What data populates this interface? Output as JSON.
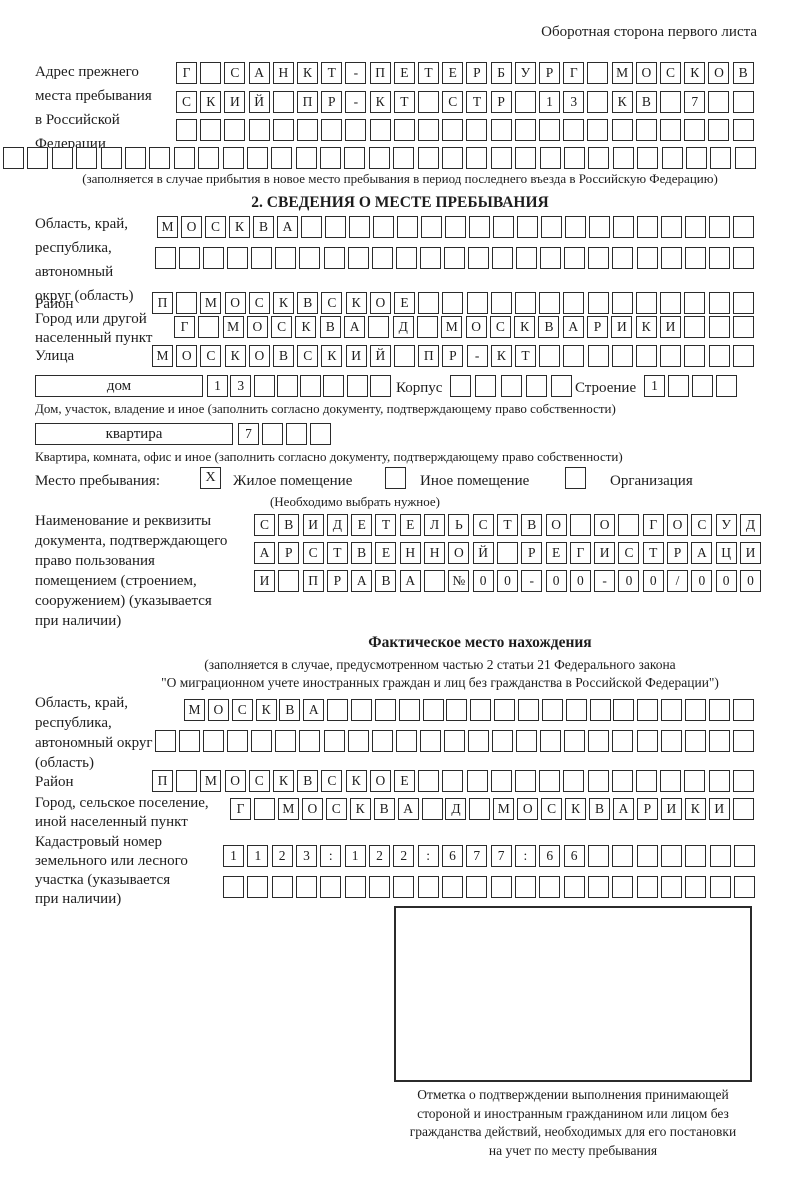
{
  "colors": {
    "ink": "#1d1d1d",
    "paper": "#ffffff"
  },
  "corner_title": "Оборотная сторона первого листа",
  "prev_address": {
    "label": "Адрес прежнего\nместа пребывания\nв Российской\nФедерации",
    "rows": [
      {
        "t": "Г САНКТ-ПЕТЕРБУРГ МОСКОВ",
        "n": 24
      },
      {
        "t": "СКИЙ ПР-КТ СТР 13 КВ 7",
        "n": 24
      },
      {
        "t": "",
        "n": 24
      },
      {
        "t": "",
        "n": 31
      }
    ],
    "note": "(заполняется в случае прибытия в новое место пребывания в период последнего въезда в Российскую Федерацию)"
  },
  "section2": {
    "title": "2. СВЕДЕНИЯ О МЕСТЕ ПРЕБЫВАНИЯ",
    "region": {
      "label": "Область, край,\nреспублика,\nавтономный\nокруг (область)",
      "rows": [
        {
          "t": "МОСКВА",
          "n": 25
        },
        {
          "t": "",
          "n": 25
        }
      ]
    },
    "district": {
      "label": "Район",
      "row": {
        "t": "П МОСКВСКОЕ",
        "n": 25
      }
    },
    "city": {
      "label": "Город или другой\nнаселенный пункт",
      "row": {
        "t": "Г МОСКВА Д МОСКВАРИКИ",
        "n": 24
      }
    },
    "street": {
      "label": "Улица",
      "row": {
        "t": "МОСКОВСКИЙ ПР-КТ",
        "n": 25
      }
    },
    "house": {
      "box_label": "дом",
      "row": {
        "t": "13",
        "n": 8
      },
      "korpus_label": "Корпус",
      "korpus_row": {
        "t": "",
        "n": 5
      },
      "stroenie_label": "Строение",
      "stroenie_row": {
        "t": "1",
        "n": 4
      },
      "note": "Дом, участок, владение и иное (заполнить согласно документу, подтверждающему право собственности)"
    },
    "apartment": {
      "box_label": "квартира",
      "row": {
        "t": "7",
        "n": 4
      },
      "note": "Квартира, комната, офис и иное (заполнить согласно документу, подтверждающему право собственности)"
    },
    "stay": {
      "label": "Место пребывания:",
      "options": [
        {
          "mark": "X",
          "label": "Жилое помещение"
        },
        {
          "mark": "",
          "label": "Иное помещение"
        },
        {
          "mark": "",
          "label": "Организация"
        }
      ],
      "note": "(Необходимо выбрать нужное)"
    },
    "document": {
      "label": "Наименование и реквизиты\nдокумента, подтверждающего\nправо пользования\nпомещением (строением,\nсооружением) (указывается\nпри наличии)",
      "rows": [
        {
          "t": "СВИДЕТЕЛЬСТВО О ГОСУД",
          "n": 21
        },
        {
          "t": "АРСТВЕННОЙ РЕГИСТРАЦИ",
          "n": 21
        },
        {
          "t": "И ПРАВА №00-00-00/000",
          "n": 21
        }
      ]
    }
  },
  "actual_location": {
    "title": "Фактическое место нахождения",
    "note_line1": "(заполняется в случае, предусмотренном частью 2 статьи 21 Федерального закона",
    "note_line2": "\"О миграционном учете иностранных граждан и лиц без гражданства в Российской Федерации\")",
    "region": {
      "label": "Область, край,\nреспублика,\nавтономный округ\n(область)",
      "rows": [
        {
          "t": "МОСКВА",
          "n": 24
        },
        {
          "t": "",
          "n": 25
        }
      ]
    },
    "district": {
      "label": "Район",
      "row": {
        "t": "П МОСКВСКОЕ",
        "n": 25
      }
    },
    "city": {
      "label": "Город, сельское поселение,\nиной населенный пункт",
      "row": {
        "t": "Г МОСКВА Д МОСКВАРИКИ",
        "n": 22
      }
    },
    "cadastral": {
      "label": "Кадастровый номер\nземельного или лесного\nучастка (указывается\nпри наличии)",
      "rows": [
        {
          "t": "1123:122:677:66",
          "n": 22
        },
        {
          "t": "",
          "n": 22
        }
      ]
    },
    "stamp_note": "Отметка о подтверждении выполнения принимающей\nстороной и иностранным гражданином или лицом без\nгражданства действий, необходимых для его постановки\nна учет по месту пребывания"
  }
}
